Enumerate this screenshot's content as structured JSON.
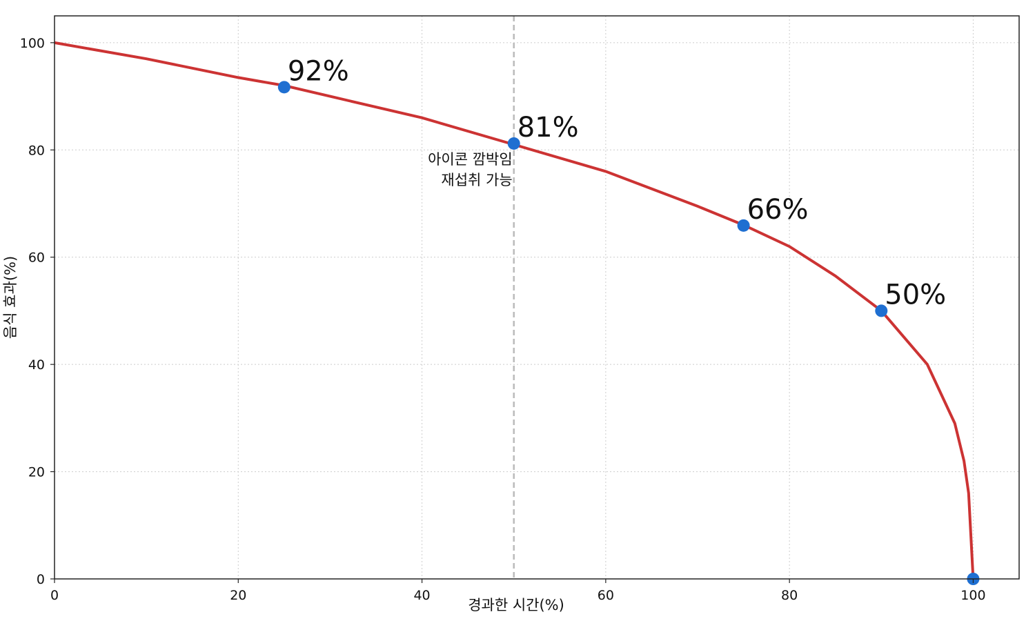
{
  "chart_data": {
    "type": "line",
    "title": "",
    "xlabel": "경과한 시간(%)",
    "ylabel": "음식 효과(%)",
    "xlim": [
      0,
      105
    ],
    "ylim": [
      0,
      105
    ],
    "x_ticks": [
      0,
      20,
      40,
      60,
      80,
      100
    ],
    "y_ticks": [
      0,
      20,
      40,
      60,
      80,
      100
    ],
    "grid": true,
    "colors": {
      "curve": "#cc3333",
      "points": "#1f6fd1",
      "vline": "#bbbbbb",
      "grid": "#cccccc"
    },
    "series": [
      {
        "values_formula_note": "",
        "x": [
          0,
          10,
          20,
          25,
          30,
          40,
          50,
          60,
          70,
          75,
          80,
          85,
          90,
          95,
          98,
          99,
          99.5,
          100
        ],
        "y": [
          100,
          97,
          93.5,
          92,
          90,
          86,
          81,
          76,
          69.5,
          66,
          62,
          56.5,
          50,
          40,
          29,
          22,
          16,
          0
        ]
      }
    ],
    "points": [
      {
        "x": 25,
        "y": 91.7,
        "label": "92%"
      },
      {
        "x": 50,
        "y": 81.2,
        "label": "81%"
      },
      {
        "x": 75,
        "y": 65.9,
        "label": "66%"
      },
      {
        "x": 90,
        "y": 50.0,
        "label": "50%"
      },
      {
        "x": 100,
        "y": 0,
        "label": ""
      }
    ],
    "vline": {
      "x": 50,
      "annotation": [
        "아이콘 깜박임",
        "재섭취 가능"
      ]
    }
  }
}
